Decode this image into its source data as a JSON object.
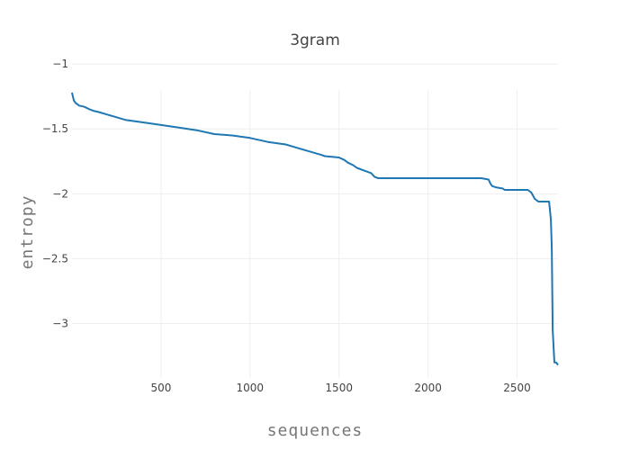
{
  "chart_data": {
    "type": "line",
    "title": "3gram",
    "xlabel": "sequences",
    "ylabel": "entropy",
    "xlim": [
      0,
      2730
    ],
    "ylim": [
      -3.42,
      -1.2
    ],
    "x_ticks": [
      500,
      1000,
      1500,
      2000,
      2500
    ],
    "x_tick_labels": [
      "500",
      "1000",
      "1500",
      "2000",
      "2500"
    ],
    "y_ticks": [
      -1,
      -1.5,
      -2,
      -2.5,
      -3
    ],
    "y_tick_labels": [
      "−1",
      "−1.5",
      "−2",
      "−2.5",
      "−3"
    ],
    "grid": true,
    "legend": "none",
    "series": [
      {
        "color": "#1f77b4",
        "x": [
          0,
          5,
          10,
          20,
          40,
          70,
          100,
          120,
          150,
          200,
          250,
          300,
          400,
          500,
          600,
          700,
          800,
          900,
          1000,
          1100,
          1200,
          1250,
          1300,
          1350,
          1400,
          1420,
          1500,
          1530,
          1550,
          1580,
          1600,
          1640,
          1680,
          1700,
          1720,
          1800,
          1900,
          2000,
          2100,
          2200,
          2300,
          2340,
          2350,
          2360,
          2380,
          2420,
          2430,
          2460,
          2500,
          2560,
          2580,
          2600,
          2620,
          2640,
          2680,
          2690,
          2695,
          2700,
          2710,
          2720,
          2730
        ],
        "y": [
          -1.22,
          -1.25,
          -1.28,
          -1.3,
          -1.32,
          -1.33,
          -1.35,
          -1.36,
          -1.37,
          -1.39,
          -1.41,
          -1.43,
          -1.45,
          -1.47,
          -1.49,
          -1.51,
          -1.54,
          -1.55,
          -1.57,
          -1.6,
          -1.62,
          -1.64,
          -1.66,
          -1.68,
          -1.7,
          -1.71,
          -1.72,
          -1.74,
          -1.76,
          -1.78,
          -1.8,
          -1.82,
          -1.84,
          -1.87,
          -1.88,
          -1.88,
          -1.88,
          -1.88,
          -1.88,
          -1.88,
          -1.88,
          -1.89,
          -1.92,
          -1.94,
          -1.95,
          -1.96,
          -1.97,
          -1.97,
          -1.97,
          -1.97,
          -1.99,
          -2.04,
          -2.06,
          -2.06,
          -2.06,
          -2.2,
          -2.42,
          -3.05,
          -3.3,
          -3.3,
          -3.32
        ]
      }
    ]
  }
}
